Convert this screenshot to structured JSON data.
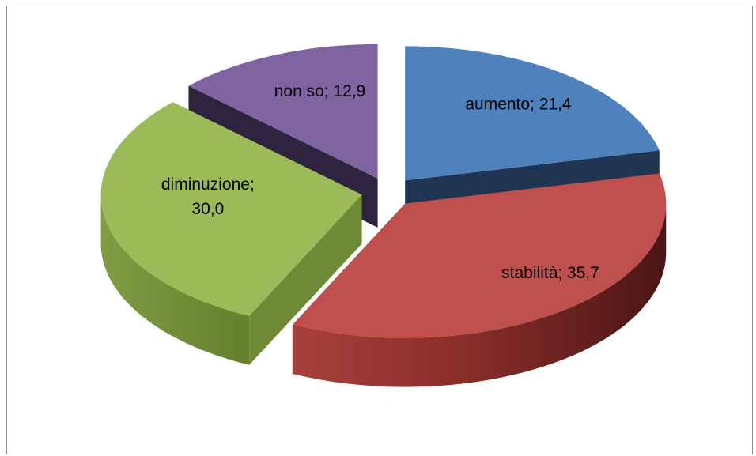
{
  "chart_data": {
    "type": "pie",
    "style": "3d-exploded",
    "title": "",
    "legend": "none",
    "slices": [
      {
        "label": "aumento",
        "value": 21.4,
        "value_text": "21,4",
        "text": "aumento; 21,4",
        "color": "#4f81bd",
        "side_color": "#1f3552"
      },
      {
        "label": "stabilità",
        "value": 35.7,
        "value_text": "35,7",
        "text": "stabilità; 35,7",
        "color": "#c0504d",
        "side_color": "#7b2422"
      },
      {
        "label": "diminuzione",
        "value": 30.0,
        "value_text": "30,0",
        "text_lines": [
          "diminuzione;",
          "30,0"
        ],
        "color": "#9bbb59",
        "side_color": "#6f8a36"
      },
      {
        "label": "non so",
        "value": 12.9,
        "value_text": "12,9",
        "text": "non so; 12,9",
        "color": "#8064a2",
        "side_color": "#2f2440"
      }
    ]
  }
}
